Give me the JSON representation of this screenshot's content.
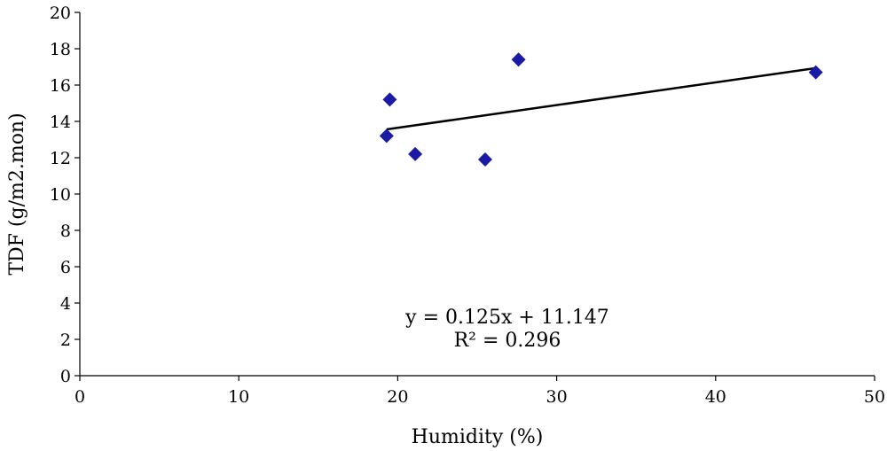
{
  "chart_data": {
    "type": "scatter",
    "xlabel": "Humidity (%)",
    "ylabel": "TDF (g/m2.mon)",
    "xlim": [
      0,
      50
    ],
    "ylim": [
      0,
      20
    ],
    "xticks": [
      0,
      10,
      20,
      30,
      40,
      50
    ],
    "yticks": [
      0,
      2,
      4,
      6,
      8,
      10,
      12,
      14,
      16,
      18,
      20
    ],
    "grid": false,
    "marker_color": "#1a1aa6",
    "series": [
      {
        "points": [
          {
            "x": 19.3,
            "y": 13.2
          },
          {
            "x": 19.5,
            "y": 15.2
          },
          {
            "x": 21.1,
            "y": 12.2
          },
          {
            "x": 25.5,
            "y": 11.9
          },
          {
            "x": 27.6,
            "y": 17.4
          },
          {
            "x": 46.3,
            "y": 16.7
          }
        ]
      }
    ],
    "trendline": {
      "slope": 0.125,
      "intercept": 11.147,
      "x_range": [
        19.3,
        46.3
      ],
      "equation": "y = 0.125x + 11.147",
      "r2_label": "R² = 0.296"
    }
  }
}
